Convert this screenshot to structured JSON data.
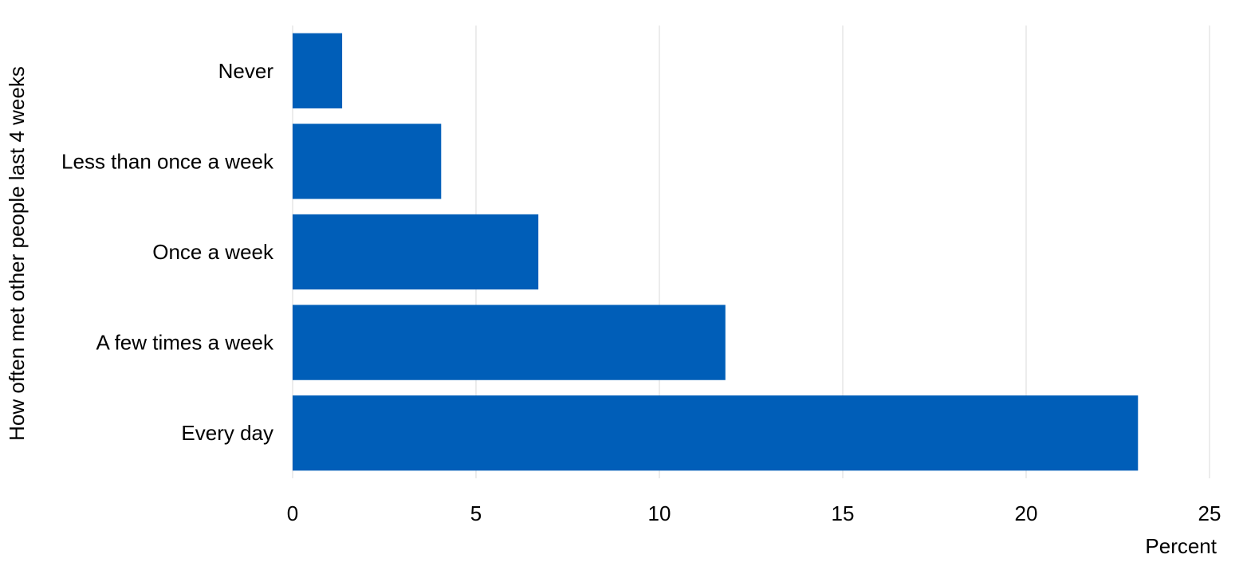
{
  "chart_data": {
    "type": "bar",
    "orientation": "horizontal",
    "categories": [
      "Never",
      "Less than once a week",
      "Once a week",
      "A few times a week",
      "Every day"
    ],
    "values": [
      1.35,
      4.05,
      6.7,
      11.8,
      23.05
    ],
    "xlabel": "Percent",
    "ylabel": "How often met other people last 4 weeks",
    "xlim": [
      0,
      25
    ],
    "xticks": [
      "0",
      "5",
      "10",
      "15",
      "20",
      "25"
    ],
    "grid": true,
    "bar_color": "#005eb8"
  }
}
